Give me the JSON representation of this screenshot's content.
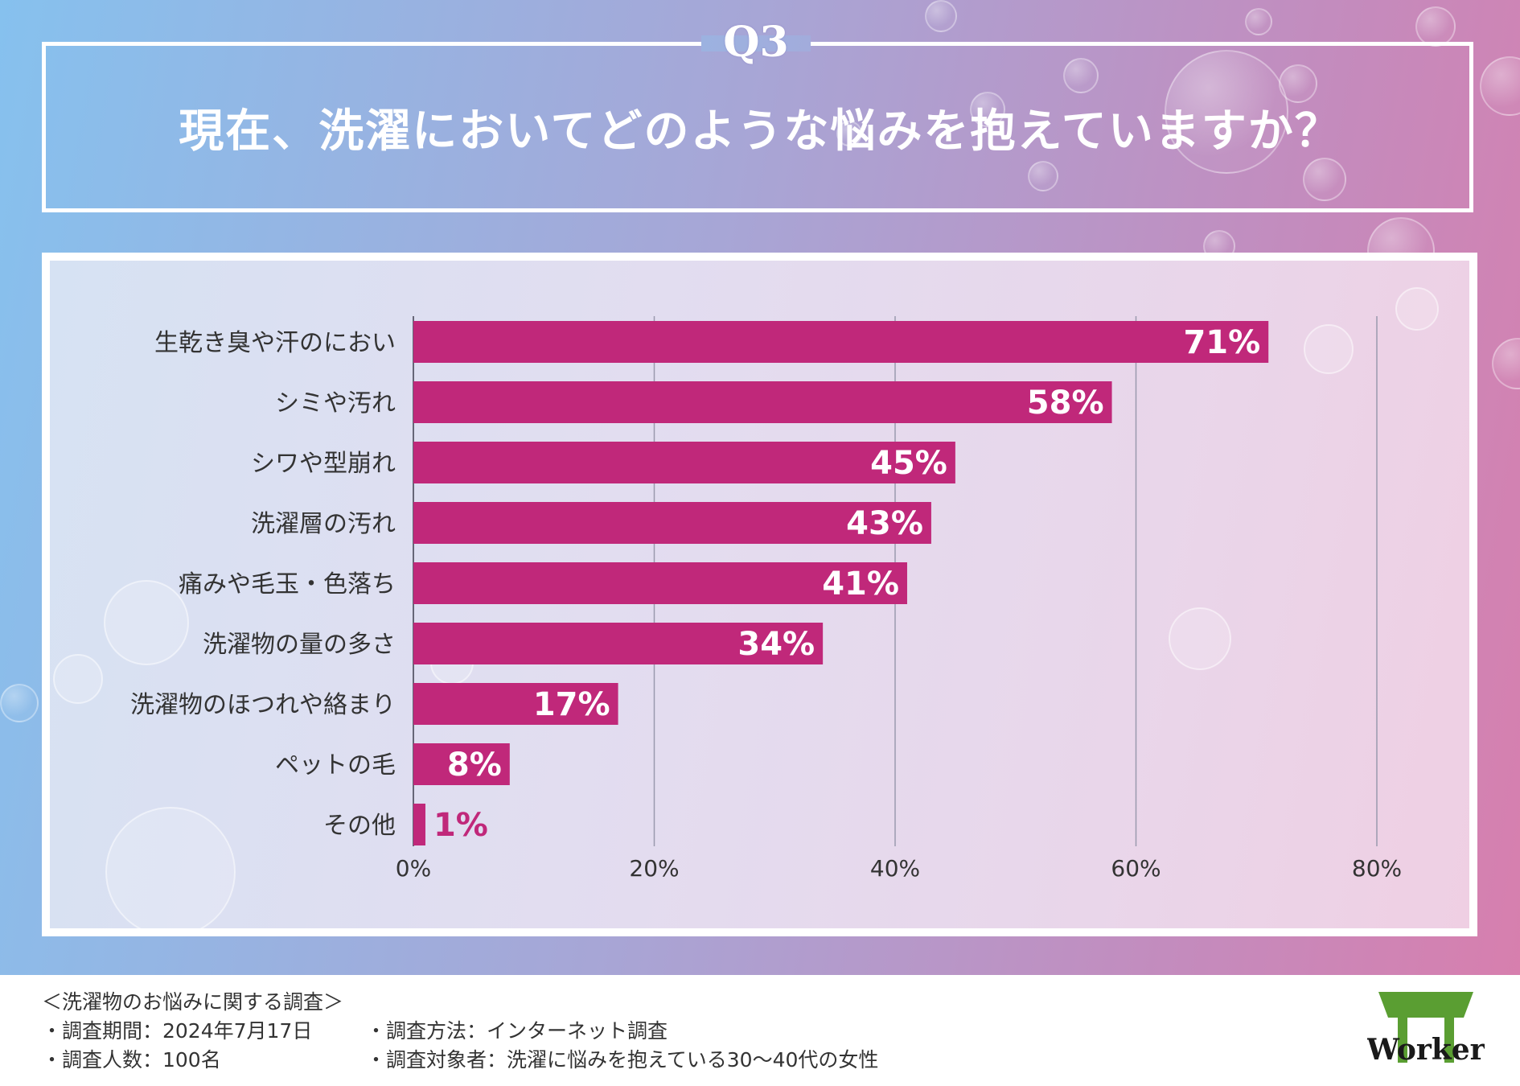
{
  "question_label": "Q3",
  "title": "現在、洗濯においてどのような悩みを抱えていますか？",
  "chart_data": {
    "type": "bar",
    "orientation": "horizontal",
    "categories": [
      "生乾き臭や汗のにおい",
      "シミや汚れ",
      "シワや型崩れ",
      "洗濯層の汚れ",
      "痛みや毛玉・色落ち",
      "洗濯物の量の多さ",
      "洗濯物のほつれや絡まり",
      "ペットの毛",
      "その他"
    ],
    "values": [
      71,
      58,
      45,
      43,
      41,
      34,
      17,
      8,
      1
    ],
    "value_labels": [
      "71%",
      "58%",
      "45%",
      "43%",
      "41%",
      "34%",
      "17%",
      "8%",
      "1%"
    ],
    "xlim": [
      0,
      80
    ],
    "xticks": [
      0,
      20,
      40,
      60,
      80
    ],
    "xtick_labels": [
      "0%",
      "20%",
      "40%",
      "60%",
      "80%"
    ],
    "grid": true,
    "bar_color": "#c0287a",
    "label_color": "#ffffff"
  },
  "footer": {
    "survey_title": "＜洗濯物のお悩みに関する調査＞",
    "period": "・調査期間：2024年7月17日",
    "count": "・調査人数：100名",
    "method": "・調査方法：インターネット調査",
    "target": "・調査対象者：洗濯に悩みを抱えている30〜40代の女性"
  },
  "logo_text": "Worker",
  "colors": {
    "bar": "#c0287a",
    "grid": "#9a9aae",
    "axis": "#666677",
    "label_text": "#333333",
    "logo_green": "#5a9e32"
  }
}
